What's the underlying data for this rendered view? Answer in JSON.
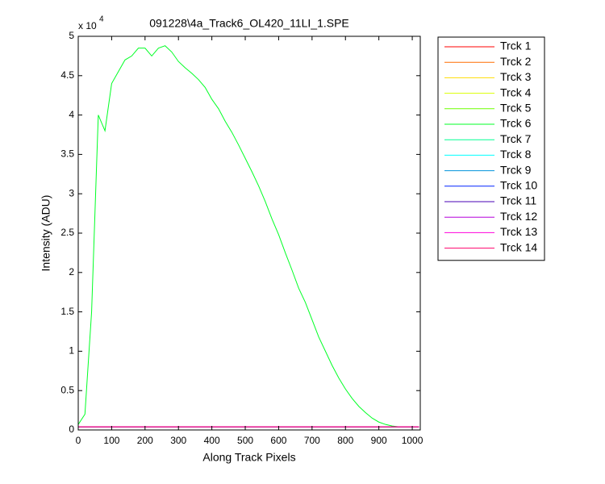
{
  "chart_data": {
    "type": "line",
    "title": "091228\\4a_Track6_OL420_11LI_1.SPE",
    "xlabel": "Along Track Pixels",
    "ylabel": "Intensity (ADU)",
    "y_multiplier": "x 10",
    "y_exponent": "4",
    "x": [
      0,
      20,
      40,
      60,
      80,
      100,
      120,
      140,
      160,
      180,
      200,
      220,
      240,
      260,
      280,
      300,
      320,
      340,
      360,
      380,
      400,
      420,
      440,
      460,
      480,
      500,
      520,
      540,
      560,
      580,
      600,
      620,
      640,
      660,
      680,
      700,
      720,
      740,
      760,
      780,
      800,
      820,
      840,
      860,
      880,
      900,
      920,
      940,
      960,
      980,
      1000,
      1020
    ],
    "xlim": [
      0,
      1024
    ],
    "xticks": [
      0,
      100,
      200,
      300,
      400,
      500,
      600,
      700,
      800,
      900,
      1000
    ],
    "ylim": [
      0,
      5
    ],
    "yticks": [
      0,
      0.5,
      1,
      1.5,
      2,
      2.5,
      3,
      3.5,
      4,
      4.5,
      5
    ],
    "legend": "outside-right",
    "series": [
      {
        "name": "Trck 1",
        "color": "#ff0000",
        "values": [
          0.04,
          0.04,
          0.04,
          0.04,
          0.04,
          0.04,
          0.04,
          0.04,
          0.04,
          0.04,
          0.04,
          0.04,
          0.04,
          0.04,
          0.04,
          0.04,
          0.04,
          0.04,
          0.04,
          0.04,
          0.04,
          0.04,
          0.04,
          0.04,
          0.04,
          0.04,
          0.04,
          0.04,
          0.04,
          0.04,
          0.04,
          0.04,
          0.04,
          0.04,
          0.04,
          0.04,
          0.04,
          0.04,
          0.04,
          0.04,
          0.04,
          0.04,
          0.04,
          0.04,
          0.04,
          0.04,
          0.04,
          0.04,
          0.04,
          0.04,
          0.04,
          0.04
        ]
      },
      {
        "name": "Trck 2",
        "color": "#ff6d00",
        "values": [
          0.04,
          0.04,
          0.04,
          0.04,
          0.04,
          0.04,
          0.04,
          0.04,
          0.04,
          0.04,
          0.04,
          0.04,
          0.04,
          0.04,
          0.04,
          0.04,
          0.04,
          0.04,
          0.04,
          0.04,
          0.04,
          0.04,
          0.04,
          0.04,
          0.04,
          0.04,
          0.04,
          0.04,
          0.04,
          0.04,
          0.04,
          0.04,
          0.04,
          0.04,
          0.04,
          0.04,
          0.04,
          0.04,
          0.04,
          0.04,
          0.04,
          0.04,
          0.04,
          0.04,
          0.04,
          0.04,
          0.04,
          0.04,
          0.04,
          0.04,
          0.04,
          0.04
        ]
      },
      {
        "name": "Trck 3",
        "color": "#ffdb00",
        "values": [
          0.04,
          0.04,
          0.04,
          0.04,
          0.04,
          0.04,
          0.04,
          0.04,
          0.04,
          0.04,
          0.04,
          0.04,
          0.04,
          0.04,
          0.04,
          0.04,
          0.04,
          0.04,
          0.04,
          0.04,
          0.04,
          0.04,
          0.04,
          0.04,
          0.04,
          0.04,
          0.04,
          0.04,
          0.04,
          0.04,
          0.04,
          0.04,
          0.04,
          0.04,
          0.04,
          0.04,
          0.04,
          0.04,
          0.04,
          0.04,
          0.04,
          0.04,
          0.04,
          0.04,
          0.04,
          0.04,
          0.04,
          0.04,
          0.04,
          0.04,
          0.04,
          0.04
        ]
      },
      {
        "name": "Trck 4",
        "color": "#dbff00",
        "values": [
          0.04,
          0.04,
          0.04,
          0.04,
          0.04,
          0.04,
          0.04,
          0.04,
          0.04,
          0.04,
          0.04,
          0.04,
          0.04,
          0.04,
          0.04,
          0.04,
          0.04,
          0.04,
          0.04,
          0.04,
          0.04,
          0.04,
          0.04,
          0.04,
          0.04,
          0.04,
          0.04,
          0.04,
          0.04,
          0.04,
          0.04,
          0.04,
          0.04,
          0.04,
          0.04,
          0.04,
          0.04,
          0.04,
          0.04,
          0.04,
          0.04,
          0.04,
          0.04,
          0.04,
          0.04,
          0.04,
          0.04,
          0.04,
          0.04,
          0.04,
          0.04,
          0.04
        ]
      },
      {
        "name": "Trck 5",
        "color": "#6dff00",
        "values": [
          0.04,
          0.04,
          0.04,
          0.04,
          0.04,
          0.04,
          0.04,
          0.04,
          0.04,
          0.04,
          0.04,
          0.04,
          0.04,
          0.04,
          0.04,
          0.04,
          0.04,
          0.04,
          0.04,
          0.04,
          0.04,
          0.04,
          0.04,
          0.04,
          0.04,
          0.04,
          0.04,
          0.04,
          0.04,
          0.04,
          0.04,
          0.04,
          0.04,
          0.04,
          0.04,
          0.04,
          0.04,
          0.04,
          0.04,
          0.04,
          0.04,
          0.04,
          0.04,
          0.04,
          0.04,
          0.04,
          0.04,
          0.04,
          0.04,
          0.04,
          0.04,
          0.04
        ]
      },
      {
        "name": "Trck 6",
        "color": "#00ff24",
        "values": [
          0.07,
          0.2,
          1.5,
          4.0,
          3.8,
          4.4,
          4.55,
          4.7,
          4.75,
          4.85,
          4.85,
          4.75,
          4.85,
          4.88,
          4.8,
          4.68,
          4.6,
          4.53,
          4.45,
          4.35,
          4.2,
          4.08,
          3.92,
          3.78,
          3.62,
          3.45,
          3.28,
          3.1,
          2.9,
          2.68,
          2.48,
          2.25,
          2.03,
          1.8,
          1.62,
          1.4,
          1.18,
          1.0,
          0.82,
          0.66,
          0.52,
          0.4,
          0.3,
          0.22,
          0.15,
          0.1,
          0.07,
          0.05,
          0.04,
          0.04,
          0.04,
          0.04
        ]
      },
      {
        "name": "Trck 7",
        "color": "#00ff92",
        "values": [
          0.04,
          0.04,
          0.04,
          0.04,
          0.04,
          0.04,
          0.04,
          0.04,
          0.04,
          0.04,
          0.04,
          0.04,
          0.04,
          0.04,
          0.04,
          0.04,
          0.04,
          0.04,
          0.04,
          0.04,
          0.04,
          0.04,
          0.04,
          0.04,
          0.04,
          0.04,
          0.04,
          0.04,
          0.04,
          0.04,
          0.04,
          0.04,
          0.04,
          0.04,
          0.04,
          0.04,
          0.04,
          0.04,
          0.04,
          0.04,
          0.04,
          0.04,
          0.04,
          0.04,
          0.04,
          0.04,
          0.04,
          0.04,
          0.04,
          0.04,
          0.04,
          0.04
        ]
      },
      {
        "name": "Trck 8",
        "color": "#00ffff",
        "values": [
          0.04,
          0.04,
          0.04,
          0.04,
          0.04,
          0.04,
          0.04,
          0.04,
          0.04,
          0.04,
          0.04,
          0.04,
          0.04,
          0.04,
          0.04,
          0.04,
          0.04,
          0.04,
          0.04,
          0.04,
          0.04,
          0.04,
          0.04,
          0.04,
          0.04,
          0.04,
          0.04,
          0.04,
          0.04,
          0.04,
          0.04,
          0.04,
          0.04,
          0.04,
          0.04,
          0.04,
          0.04,
          0.04,
          0.04,
          0.04,
          0.04,
          0.04,
          0.04,
          0.04,
          0.04,
          0.04,
          0.04,
          0.04,
          0.04,
          0.04,
          0.04,
          0.04
        ]
      },
      {
        "name": "Trck 9",
        "color": "#0092db",
        "values": [
          0.04,
          0.04,
          0.04,
          0.04,
          0.04,
          0.04,
          0.04,
          0.04,
          0.04,
          0.04,
          0.04,
          0.04,
          0.04,
          0.04,
          0.04,
          0.04,
          0.04,
          0.04,
          0.04,
          0.04,
          0.04,
          0.04,
          0.04,
          0.04,
          0.04,
          0.04,
          0.04,
          0.04,
          0.04,
          0.04,
          0.04,
          0.04,
          0.04,
          0.04,
          0.04,
          0.04,
          0.04,
          0.04,
          0.04,
          0.04,
          0.04,
          0.04,
          0.04,
          0.04,
          0.04,
          0.04,
          0.04,
          0.04,
          0.04,
          0.04,
          0.04,
          0.04
        ]
      },
      {
        "name": "Trck 10",
        "color": "#0024ff",
        "values": [
          0.04,
          0.04,
          0.04,
          0.04,
          0.04,
          0.04,
          0.04,
          0.04,
          0.04,
          0.04,
          0.04,
          0.04,
          0.04,
          0.04,
          0.04,
          0.04,
          0.04,
          0.04,
          0.04,
          0.04,
          0.04,
          0.04,
          0.04,
          0.04,
          0.04,
          0.04,
          0.04,
          0.04,
          0.04,
          0.04,
          0.04,
          0.04,
          0.04,
          0.04,
          0.04,
          0.04,
          0.04,
          0.04,
          0.04,
          0.04,
          0.04,
          0.04,
          0.04,
          0.04,
          0.04,
          0.04,
          0.04,
          0.04,
          0.04,
          0.04,
          0.04,
          0.04
        ]
      },
      {
        "name": "Trck 11",
        "color": "#4900b6",
        "values": [
          0.04,
          0.04,
          0.04,
          0.04,
          0.04,
          0.04,
          0.04,
          0.04,
          0.04,
          0.04,
          0.04,
          0.04,
          0.04,
          0.04,
          0.04,
          0.04,
          0.04,
          0.04,
          0.04,
          0.04,
          0.04,
          0.04,
          0.04,
          0.04,
          0.04,
          0.04,
          0.04,
          0.04,
          0.04,
          0.04,
          0.04,
          0.04,
          0.04,
          0.04,
          0.04,
          0.04,
          0.04,
          0.04,
          0.04,
          0.04,
          0.04,
          0.04,
          0.04,
          0.04,
          0.04,
          0.04,
          0.04,
          0.04,
          0.04,
          0.04,
          0.04,
          0.04
        ]
      },
      {
        "name": "Trck 12",
        "color": "#b600db",
        "values": [
          0.04,
          0.04,
          0.04,
          0.04,
          0.04,
          0.04,
          0.04,
          0.04,
          0.04,
          0.04,
          0.04,
          0.04,
          0.04,
          0.04,
          0.04,
          0.04,
          0.04,
          0.04,
          0.04,
          0.04,
          0.04,
          0.04,
          0.04,
          0.04,
          0.04,
          0.04,
          0.04,
          0.04,
          0.04,
          0.04,
          0.04,
          0.04,
          0.04,
          0.04,
          0.04,
          0.04,
          0.04,
          0.04,
          0.04,
          0.04,
          0.04,
          0.04,
          0.04,
          0.04,
          0.04,
          0.04,
          0.04,
          0.04,
          0.04,
          0.04,
          0.04,
          0.04
        ]
      },
      {
        "name": "Trck 13",
        "color": "#ff00db",
        "values": [
          0.04,
          0.04,
          0.04,
          0.04,
          0.04,
          0.04,
          0.04,
          0.04,
          0.04,
          0.04,
          0.04,
          0.04,
          0.04,
          0.04,
          0.04,
          0.04,
          0.04,
          0.04,
          0.04,
          0.04,
          0.04,
          0.04,
          0.04,
          0.04,
          0.04,
          0.04,
          0.04,
          0.04,
          0.04,
          0.04,
          0.04,
          0.04,
          0.04,
          0.04,
          0.04,
          0.04,
          0.04,
          0.04,
          0.04,
          0.04,
          0.04,
          0.04,
          0.04,
          0.04,
          0.04,
          0.04,
          0.04,
          0.04,
          0.04,
          0.04,
          0.04,
          0.04
        ]
      },
      {
        "name": "Trck 14",
        "color": "#ff006d",
        "values": [
          0.04,
          0.04,
          0.04,
          0.04,
          0.04,
          0.04,
          0.04,
          0.04,
          0.04,
          0.04,
          0.04,
          0.04,
          0.04,
          0.04,
          0.04,
          0.04,
          0.04,
          0.04,
          0.04,
          0.04,
          0.04,
          0.04,
          0.04,
          0.04,
          0.04,
          0.04,
          0.04,
          0.04,
          0.04,
          0.04,
          0.04,
          0.04,
          0.04,
          0.04,
          0.04,
          0.04,
          0.04,
          0.04,
          0.04,
          0.04,
          0.04,
          0.04,
          0.04,
          0.04,
          0.04,
          0.04,
          0.04,
          0.04,
          0.04,
          0.04,
          0.04,
          0.04
        ]
      }
    ]
  }
}
